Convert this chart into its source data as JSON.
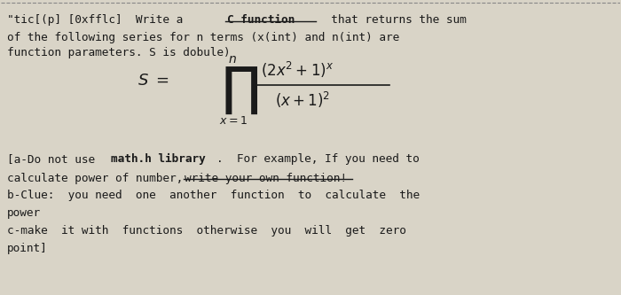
{
  "bg_color": "#d9d4c7",
  "text_color": "#1a1a1a",
  "fs": 9.2,
  "line1a": "\"tic[(p] [0xfflc]  Write a ",
  "line1b": "C function",
  "line1c": "  that returns the sum",
  "line2": "of the following series for n terms (x(int) and n(int) are",
  "line3": "function parameters. S is dobule)",
  "note1a": "[a-Do not use ",
  "note1b": "math.h library",
  "note1c": ".  For example, If you need to",
  "note2a": "calculate power of number, ",
  "note2b": "write your own function!",
  "note3": "b-Clue:  you need  one  another  function  to  calculate  the",
  "note4": "power",
  "note5": "c-make  it with  functions  otherwise  you  will  get  zero",
  "note6": "point]",
  "dashed_line_color": "#888888"
}
